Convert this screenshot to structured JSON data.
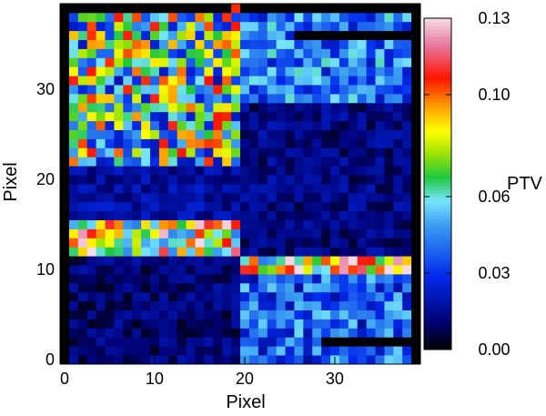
{
  "chart_data": {
    "type": "heatmap",
    "title": "",
    "xlabel": "Pixel",
    "ylabel": "Pixel",
    "colorbar_label": "PTV",
    "xlim": [
      0,
      40
    ],
    "ylim": [
      0,
      40
    ],
    "x_ticks": [
      0,
      10,
      20,
      30
    ],
    "y_ticks": [
      0,
      10,
      20,
      30
    ],
    "x_tick_labels": [
      "0",
      "10",
      "20",
      "30"
    ],
    "y_tick_labels": [
      "0",
      "10",
      "20",
      "30"
    ],
    "colorbar_range": [
      0.0,
      0.13
    ],
    "colorbar_ticks": [
      0.0,
      0.03,
      0.06,
      0.1,
      0.13
    ],
    "colorbar_tick_labels": [
      "0.00",
      "0.03",
      "0.06",
      "0.10",
      "0.13"
    ],
    "colormap": "rainbow",
    "grid_size": [
      40,
      40
    ],
    "regions": [
      {
        "name": "lower-left",
        "x": [
          1,
          19
        ],
        "y": [
          0,
          11
        ],
        "level": 0.011
      },
      {
        "name": "lower-right",
        "x": [
          20,
          39
        ],
        "y": [
          0,
          9
        ],
        "level": 0.037
      },
      {
        "name": "lower-right-top-row",
        "x": [
          20,
          39
        ],
        "y": [
          10,
          11
        ],
        "level": 0.088
      },
      {
        "name": "mid-left-band",
        "x": [
          1,
          19
        ],
        "y": [
          12,
          15
        ],
        "level": 0.087
      },
      {
        "name": "mid-left",
        "x": [
          1,
          19
        ],
        "y": [
          16,
          21
        ],
        "level": 0.017
      },
      {
        "name": "upper-left",
        "x": [
          1,
          19
        ],
        "y": [
          22,
          39
        ],
        "level": 0.064
      },
      {
        "name": "mid-right",
        "x": [
          20,
          39
        ],
        "y": [
          12,
          28
        ],
        "level": 0.013
      },
      {
        "name": "upper-right",
        "x": [
          20,
          39
        ],
        "y": [
          29,
          38
        ],
        "level": 0.042
      }
    ],
    "masked_cells_note": ""
  }
}
